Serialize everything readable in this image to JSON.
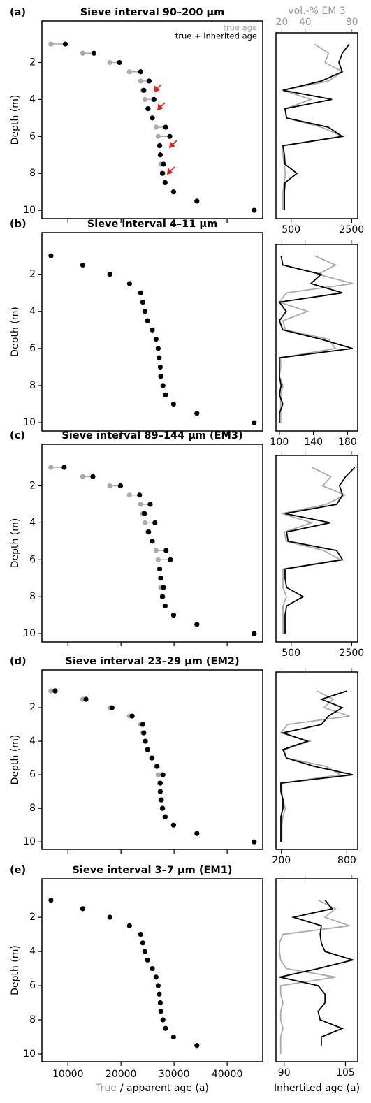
{
  "chart_data": [
    {
      "type": "dumbbell",
      "panel": "(a)",
      "title": "Sieve interval 90–200 µm",
      "y_label": "Depth (m)",
      "y": [
        1,
        1.5,
        2,
        2.5,
        3,
        3.5,
        4,
        4.5,
        5,
        5.5,
        6,
        6.5,
        7,
        7.5,
        8,
        8.5,
        9,
        9.5,
        10
      ],
      "series": [
        {
          "name": "true age",
          "color": "#aaaaaa",
          "values": [
            6800,
            12800,
            17900,
            21600,
            23700,
            24100,
            24500,
            25000,
            25900,
            26600,
            27000,
            27200,
            27400,
            27500,
            27900,
            28400,
            29900,
            34300,
            45100
          ]
        },
        {
          "name": "true + inherited age",
          "color": "#000000",
          "values": [
            9500,
            14900,
            19700,
            23700,
            25300,
            24300,
            26200,
            25100,
            25900,
            28400,
            29200,
            27300,
            27400,
            28000,
            27800,
            28300,
            29900,
            34300,
            45100
          ]
        }
      ],
      "xlim": [
        5100,
        46700
      ],
      "xticks": [
        10000,
        20000,
        30000,
        40000
      ],
      "show_xtick_labels": false,
      "ylim": [
        -0.25,
        10.45
      ],
      "y_inverted": true,
      "yticks": [
        2,
        4,
        6,
        8,
        10
      ],
      "legend": "upper right"
    },
    {
      "type": "profile",
      "x2_label": "vol.-% EM 3",
      "y": [
        1,
        1.5,
        2,
        2.5,
        3,
        3.5,
        4,
        4.5,
        5,
        5.5,
        6,
        6.5,
        7,
        7.5,
        8,
        8.5,
        9,
        9.5,
        10
      ],
      "series": [
        {
          "color": "#aaaaaa",
          "axis": "x2",
          "values": [
            48,
            60,
            57,
            72,
            60,
            21,
            45,
            23,
            24,
            54,
            72,
            21,
            21,
            22,
            23,
            22,
            21,
            21,
            21
          ]
        },
        {
          "color": "#000000",
          "values": [
            2420,
            2190,
            2080,
            2190,
            1500,
            230,
            1850,
            300,
            350,
            1730,
            2190,
            230,
            280,
            300,
            690,
            300,
            280,
            280,
            280
          ]
        }
      ],
      "xlim": [
        0,
        2700
      ],
      "xticks": [
        500,
        2500
      ],
      "x2lim": [
        15,
        85
      ],
      "x2ticks": [
        20,
        40,
        80
      ],
      "show_x2tick_labels": true,
      "ylim": [
        -0.25,
        10.45
      ],
      "y_inverted": true
    },
    {
      "type": "dumbbell",
      "panel": "(b)",
      "title": "Sieve interval 4–11 µm",
      "y_label": "Depth (m)",
      "y": [
        1,
        1.5,
        2,
        2.5,
        3,
        3.5,
        4,
        4.5,
        5,
        5.5,
        6,
        6.5,
        7,
        7.5,
        8,
        8.5,
        9,
        9.5,
        10
      ],
      "series": [
        {
          "color": "#000000",
          "values": [
            6800,
            12800,
            17900,
            21600,
            23700,
            24100,
            24500,
            25000,
            25900,
            26600,
            27000,
            27200,
            27400,
            27500,
            27900,
            28400,
            29900,
            34300,
            45100
          ]
        }
      ],
      "xlim": [
        5100,
        46700
      ],
      "xticks": [
        10000,
        20000,
        30000,
        40000
      ],
      "show_xtick_labels": false,
      "ylim": [
        -0.25,
        10.45
      ],
      "y_inverted": true,
      "yticks": [
        2,
        4,
        6,
        8,
        10
      ]
    },
    {
      "type": "profile",
      "y": [
        1,
        1.5,
        2,
        2.5,
        3,
        3.5,
        4,
        4.5,
        5,
        5.5,
        6,
        6.5,
        7,
        7.5,
        8,
        8.5,
        9,
        9.5,
        10
      ],
      "series": [
        {
          "color": "#aaaaaa",
          "axis": "x2",
          "values": [
            48,
            66,
            51,
            81,
            24,
            18,
            42,
            21,
            23,
            60,
            66,
            19,
            19,
            18,
            21,
            19,
            19,
            19,
            19
          ]
        },
        {
          "color": "#000000",
          "values": [
            102,
            104,
            149,
            137,
            174,
            100,
            108,
            100,
            104,
            149,
            186,
            100,
            100,
            100,
            102,
            100,
            104,
            100,
            100
          ]
        }
      ],
      "xlim": [
        96,
        192
      ],
      "xticks": [
        100,
        140,
        180
      ],
      "x2lim": [
        15,
        85
      ],
      "x2ticks": [
        20,
        40,
        80
      ],
      "show_x2tick_labels": false,
      "ylim": [
        -0.25,
        10.45
      ],
      "y_inverted": true
    },
    {
      "type": "dumbbell",
      "panel": "(c)",
      "title": "Sieve interval 89–144 µm (EM3)",
      "y_label": "Depth (m)",
      "y": [
        1,
        1.5,
        2,
        2.5,
        3,
        3.5,
        4,
        4.5,
        5,
        5.5,
        6,
        6.5,
        7,
        7.5,
        8,
        8.5,
        9,
        9.5,
        10
      ],
      "series": [
        {
          "color": "#aaaaaa",
          "values": [
            6800,
            12800,
            17900,
            21600,
            23700,
            24100,
            24500,
            25000,
            25900,
            26600,
            27000,
            27200,
            27400,
            27500,
            27900,
            28400,
            29900,
            34300,
            45100
          ]
        },
        {
          "color": "#000000",
          "values": [
            9300,
            14700,
            19900,
            23500,
            25500,
            24400,
            26400,
            25200,
            25900,
            28500,
            29300,
            27300,
            27500,
            28000,
            27800,
            28300,
            29900,
            34300,
            45100
          ]
        }
      ],
      "xlim": [
        5100,
        46700
      ],
      "xticks": [
        10000,
        20000,
        30000,
        40000
      ],
      "show_xtick_labels": false,
      "ylim": [
        -0.25,
        10.45
      ],
      "y_inverted": true,
      "yticks": [
        2,
        4,
        6,
        8,
        10
      ]
    },
    {
      "type": "profile",
      "y": [
        1,
        1.5,
        2,
        2.5,
        3,
        3.5,
        4,
        4.5,
        5,
        5.5,
        6,
        6.5,
        7,
        7.5,
        8,
        8.5,
        9,
        9.5,
        10
      ],
      "series": [
        {
          "color": "#aaaaaa",
          "axis": "x2",
          "values": [
            46,
            62,
            55,
            74,
            58,
            20,
            46,
            22,
            24,
            56,
            70,
            21,
            21,
            21,
            24,
            21,
            21,
            21,
            21
          ]
        },
        {
          "color": "#000000",
          "values": [
            2600,
            2300,
            2100,
            2200,
            2000,
            300,
            1800,
            350,
            400,
            2000,
            2200,
            300,
            300,
            350,
            900,
            350,
            300,
            300,
            300
          ]
        }
      ],
      "xlim": [
        0,
        2700
      ],
      "xticks": [
        500,
        2500
      ],
      "x2lim": [
        15,
        85
      ],
      "x2ticks": [
        20,
        40,
        80
      ],
      "show_x2tick_labels": false,
      "ylim": [
        -0.25,
        10.45
      ],
      "y_inverted": true
    },
    {
      "type": "dumbbell",
      "panel": "(d)",
      "title": "Sieve interval 23–29 µm (EM2)",
      "y_label": "Depth (m)",
      "y": [
        1,
        1.5,
        2,
        2.5,
        3,
        3.5,
        4,
        4.5,
        5,
        5.5,
        6,
        6.5,
        7,
        7.5,
        8,
        8.5,
        9,
        9.5,
        10
      ],
      "series": [
        {
          "color": "#aaaaaa",
          "values": [
            6800,
            12800,
            17900,
            21600,
            23700,
            24100,
            24500,
            25000,
            25900,
            26600,
            27000,
            27200,
            27400,
            27500,
            27900,
            28400,
            29900,
            34300,
            45100
          ]
        },
        {
          "color": "#000000",
          "values": [
            7600,
            13400,
            18300,
            22100,
            24100,
            24300,
            24600,
            25000,
            25800,
            26800,
            27900,
            27400,
            27400,
            27600,
            27800,
            28300,
            29900,
            34300,
            45100
          ]
        }
      ],
      "xlim": [
        5100,
        46700
      ],
      "xticks": [
        10000,
        20000,
        30000,
        40000
      ],
      "show_xtick_labels": false,
      "ylim": [
        -0.25,
        10.45
      ],
      "y_inverted": true,
      "yticks": [
        2,
        4,
        6,
        8,
        10
      ]
    },
    {
      "type": "profile",
      "y": [
        1,
        1.5,
        2,
        2.5,
        3,
        3.5,
        4,
        4.5,
        5,
        5.5,
        6,
        6.5,
        7,
        7.5,
        8,
        8.5,
        9,
        9.5,
        10
      ],
      "series": [
        {
          "color": "#aaaaaa",
          "axis": "x2",
          "values": [
            50,
            64,
            56,
            78,
            25,
            19,
            44,
            22,
            24,
            58,
            70,
            20,
            20,
            21,
            23,
            21,
            20,
            20,
            20
          ]
        },
        {
          "color": "#000000",
          "values": [
            804,
            567,
            759,
            631,
            567,
            214,
            438,
            214,
            246,
            503,
            855,
            195,
            195,
            214,
            214,
            195,
            195,
            195,
            195
          ]
        }
      ],
      "xlim": [
        150,
        900
      ],
      "xticks": [
        200,
        800
      ],
      "x2lim": [
        15,
        85
      ],
      "x2ticks": [
        20,
        40,
        80
      ],
      "show_x2tick_labels": false,
      "ylim": [
        -0.25,
        10.45
      ],
      "y_inverted": true
    },
    {
      "type": "dumbbell",
      "panel": "(e)",
      "title": "Sieve interval 3–7 µm (EM1)",
      "y_label": "Depth (m)",
      "y": [
        1,
        1.5,
        2,
        2.5,
        3,
        3.5,
        4,
        4.5,
        5,
        5.5,
        6,
        6.5,
        7,
        7.5,
        8,
        8.5,
        9,
        9.5,
        10
      ],
      "series": [
        {
          "color": "#000000",
          "values": [
            6800,
            12800,
            17900,
            21600,
            23700,
            24100,
            24500,
            25000,
            25900,
            26600,
            27000,
            27200,
            27400,
            27500,
            27900,
            28400,
            29900,
            34300,
            null
          ]
        }
      ],
      "xlim": [
        5100,
        46700
      ],
      "xticks": [
        10000,
        20000,
        30000,
        40000
      ],
      "show_xtick_labels": true,
      "x_label_parts": [
        {
          "text": "True",
          "color": "#999999"
        },
        {
          "text": "/ apparent age (a)",
          "color": "#000000"
        }
      ],
      "ylim": [
        -0.25,
        10.45
      ],
      "y_inverted": true,
      "yticks": [
        2,
        4,
        6,
        8,
        10
      ]
    },
    {
      "type": "profile",
      "x_label": "Inhertited age (a)",
      "y": [
        1,
        1.5,
        2,
        2.5,
        3,
        3.5,
        4,
        4.5,
        5,
        5.5,
        6,
        6.5,
        7,
        7.5,
        8,
        8.5,
        9,
        9.5,
        10
      ],
      "series": [
        {
          "color": "#aaaaaa",
          "axis": "x2",
          "values": [
            51,
            66,
            57,
            78,
            21,
            18,
            18,
            19,
            24,
            66,
            19,
            19,
            21,
            19,
            19,
            21,
            19,
            19,
            19
          ]
        },
        {
          "color": "#000000",
          "values": [
            100,
            101.7,
            92.3,
            99.1,
            98.8,
            99.1,
            100,
            106.8,
            98.3,
            88.9,
            98.3,
            100,
            100,
            98.3,
            98.8,
            104.2,
            99.1,
            99.1,
            null
          ]
        }
      ],
      "xlim": [
        88,
        108
      ],
      "xticks": [
        90,
        105
      ],
      "x2lim": [
        15,
        85
      ],
      "x2ticks": [
        20,
        40,
        80
      ],
      "show_x2tick_labels": false,
      "ylim": [
        -0.25,
        10.45
      ],
      "y_inverted": true
    }
  ]
}
